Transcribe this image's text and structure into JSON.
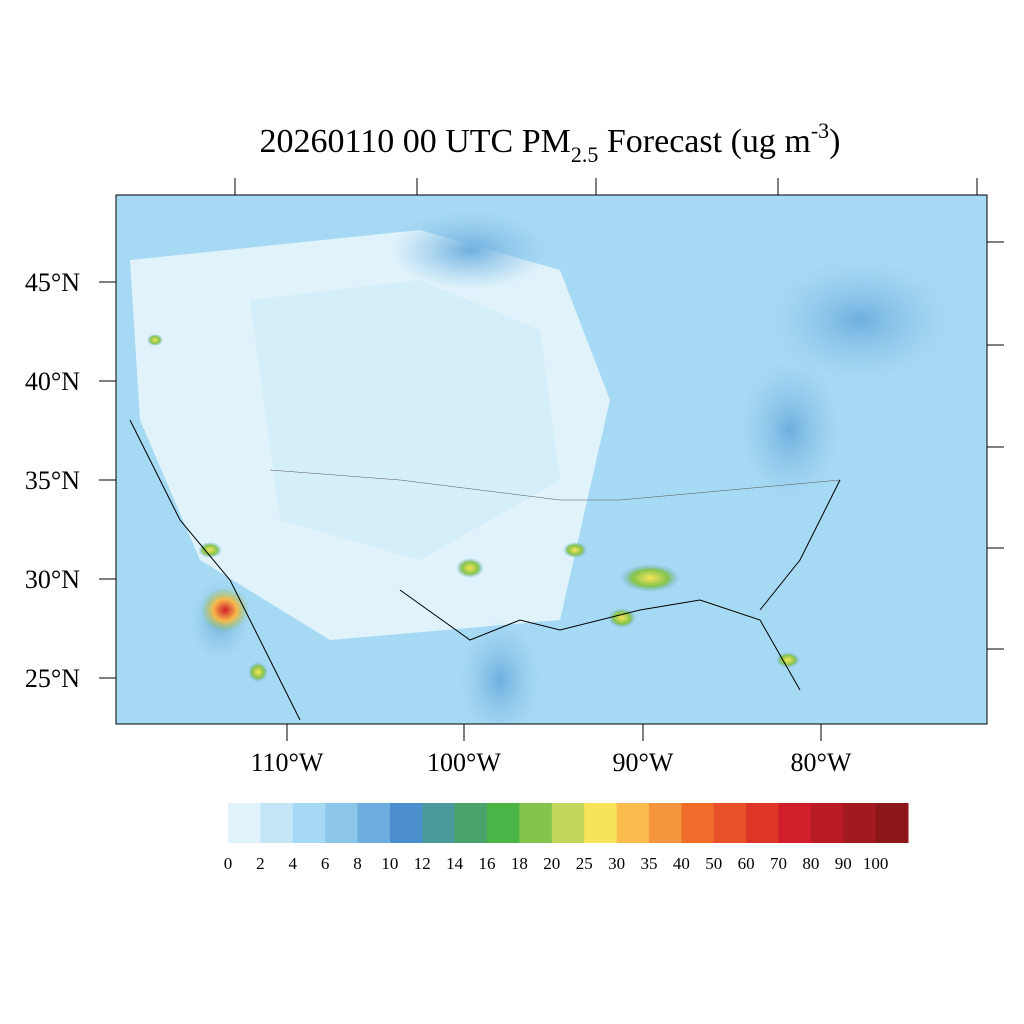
{
  "header": {
    "title": {
      "main": "20260110 00 UTC PM",
      "subscript": "2.5",
      "middle": " Forecast (ug m",
      "superscript": "-3",
      "end": ")"
    }
  },
  "map": {
    "latitude_labels": [
      "45°N",
      "40°N",
      "35°N",
      "30°N",
      "25°N"
    ],
    "longitude_labels": [
      "110°W",
      "100°W",
      "90°W",
      "80°W"
    ]
  },
  "colorbar": {
    "levels": [
      0,
      2,
      4,
      6,
      8,
      10,
      12,
      14,
      16,
      18,
      20,
      25,
      30,
      35,
      40,
      50,
      60,
      70,
      80,
      90,
      100
    ],
    "colors": [
      "#e0f3fb",
      "#c3e6f7",
      "#a6d9f3",
      "#8cc6ea",
      "#6eaede",
      "#4c8fcf",
      "#4a9b9b",
      "#48a46a",
      "#4bb548",
      "#85c44c",
      "#c3d55a",
      "#f8e45a",
      "#f8bb4c",
      "#f5963e",
      "#f06c2a",
      "#e8502a",
      "#dd3528",
      "#d01f2a",
      "#b81b24",
      "#a01a20",
      "#8c1718"
    ]
  }
}
